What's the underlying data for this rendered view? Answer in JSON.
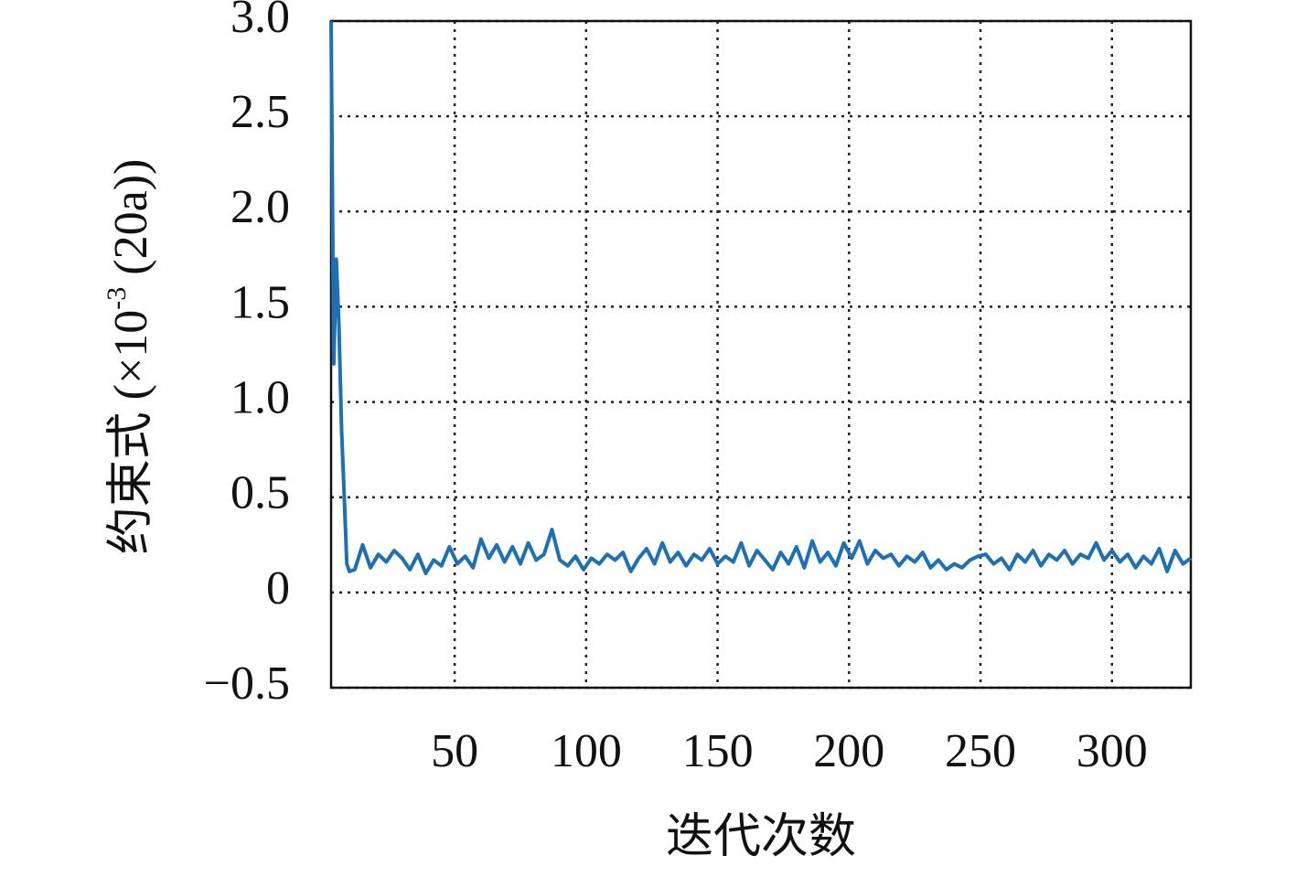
{
  "chart_data": {
    "type": "line",
    "xlabel": "迭代次数",
    "ylabel": {
      "prefix": "约束式 (×10",
      "sup": "-3",
      "suffix": " (20a))"
    },
    "xlim": [
      3,
      330
    ],
    "ylim": [
      -0.5,
      3.0
    ],
    "xticks": [
      50,
      100,
      150,
      200,
      250,
      300
    ],
    "yticks": [
      {
        "value": -0.5,
        "label": "−0.5"
      },
      0,
      0.5,
      {
        "value": 1.0,
        "label": "1.0"
      },
      1.5,
      {
        "value": 2.0,
        "label": "2.0"
      },
      2.5,
      {
        "value": 3.0,
        "label": "3.0"
      }
    ],
    "grid": true,
    "series": [
      {
        "color": "#1f6fb4",
        "x": [
          3,
          4,
          5,
          6,
          7,
          8,
          9,
          10,
          12,
          15,
          18,
          21,
          24,
          27,
          30,
          33,
          36,
          39,
          42,
          45,
          48,
          51,
          54,
          57,
          60,
          63,
          66,
          69,
          72,
          75,
          78,
          81,
          84,
          87,
          90,
          93,
          96,
          99,
          102,
          105,
          108,
          111,
          114,
          117,
          120,
          123,
          126,
          129,
          132,
          135,
          138,
          141,
          144,
          147,
          150,
          153,
          156,
          159,
          162,
          165,
          168,
          171,
          174,
          177,
          180,
          183,
          186,
          189,
          192,
          195,
          198,
          201,
          204,
          207,
          210,
          213,
          216,
          219,
          222,
          225,
          228,
          231,
          234,
          237,
          240,
          243,
          246,
          249,
          252,
          255,
          258,
          261,
          264,
          267,
          270,
          273,
          276,
          279,
          282,
          285,
          288,
          291,
          294,
          297,
          300,
          303,
          306,
          309,
          312,
          315,
          318,
          321,
          324,
          327,
          330
        ],
        "values": [
          3.0,
          1.2,
          1.75,
          1.4,
          0.85,
          0.5,
          0.15,
          0.11,
          0.12,
          0.25,
          0.13,
          0.2,
          0.16,
          0.22,
          0.18,
          0.12,
          0.2,
          0.1,
          0.17,
          0.14,
          0.24,
          0.15,
          0.19,
          0.13,
          0.28,
          0.18,
          0.25,
          0.16,
          0.24,
          0.15,
          0.26,
          0.17,
          0.2,
          0.33,
          0.17,
          0.14,
          0.19,
          0.12,
          0.18,
          0.15,
          0.2,
          0.17,
          0.21,
          0.11,
          0.18,
          0.23,
          0.15,
          0.26,
          0.16,
          0.21,
          0.14,
          0.2,
          0.17,
          0.23,
          0.15,
          0.19,
          0.16,
          0.26,
          0.14,
          0.22,
          0.17,
          0.12,
          0.21,
          0.15,
          0.24,
          0.13,
          0.27,
          0.16,
          0.21,
          0.14,
          0.26,
          0.18,
          0.27,
          0.15,
          0.22,
          0.18,
          0.2,
          0.14,
          0.19,
          0.16,
          0.21,
          0.13,
          0.17,
          0.12,
          0.15,
          0.13,
          0.17,
          0.19,
          0.2,
          0.15,
          0.18,
          0.12,
          0.2,
          0.16,
          0.22,
          0.14,
          0.2,
          0.17,
          0.22,
          0.15,
          0.2,
          0.18,
          0.26,
          0.17,
          0.22,
          0.16,
          0.2,
          0.13,
          0.19,
          0.15,
          0.23,
          0.11,
          0.22,
          0.15,
          0.18
        ]
      }
    ]
  }
}
